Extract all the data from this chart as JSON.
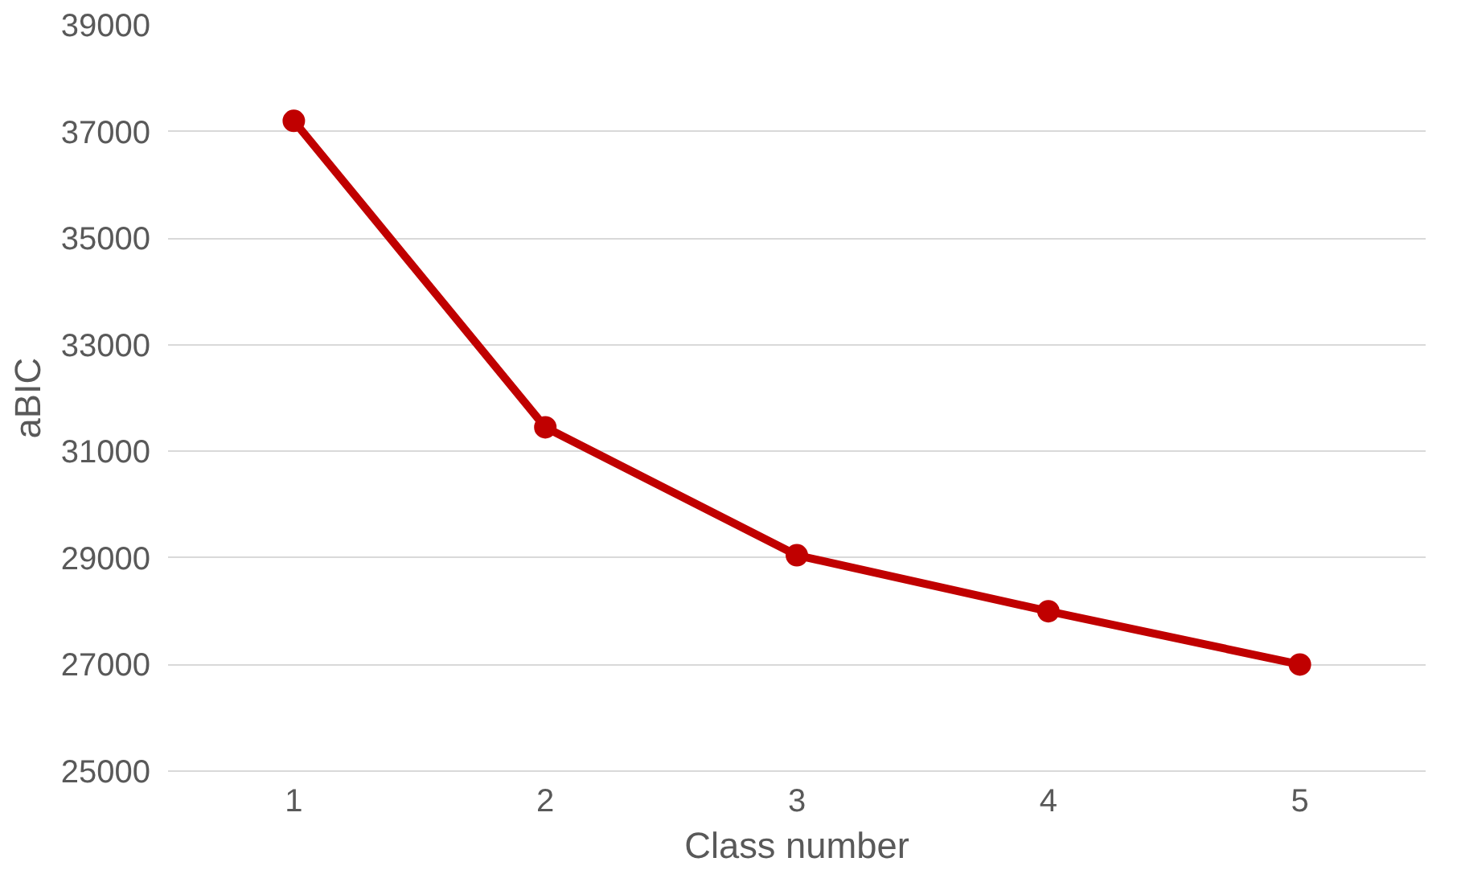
{
  "chart_data": {
    "type": "line",
    "xlabel": "Class number",
    "ylabel": "aBIC",
    "categories": [
      "1",
      "2",
      "3",
      "4",
      "5"
    ],
    "series": [
      {
        "color": "#c00000",
        "values": [
          37200,
          31450,
          29050,
          28000,
          27000
        ]
      }
    ],
    "ylim": [
      25000,
      39000
    ],
    "yticks": [
      25000,
      27000,
      29000,
      31000,
      33000,
      35000,
      37000,
      39000
    ],
    "grid": "y",
    "marker": "circle",
    "line_style": "solid"
  }
}
